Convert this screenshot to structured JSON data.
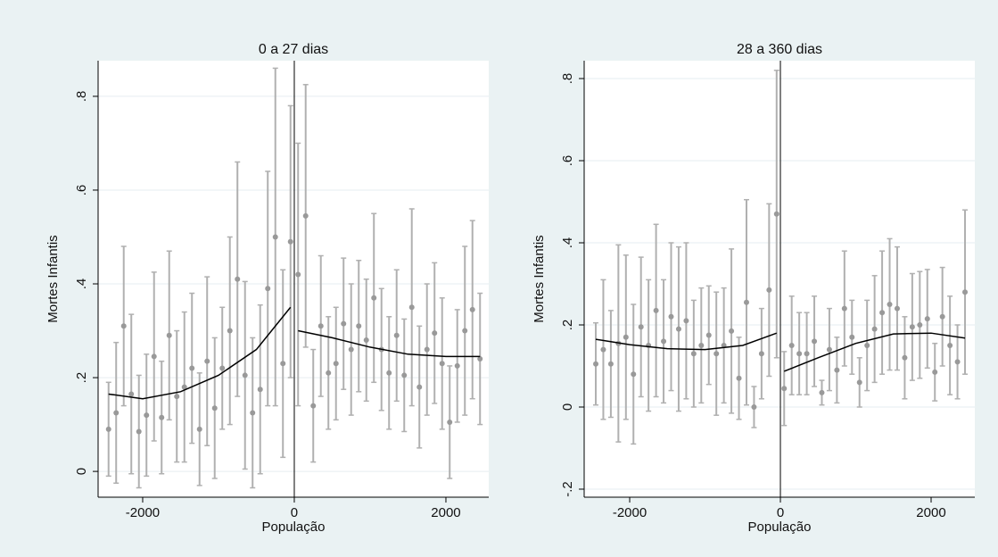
{
  "chart_data": [
    {
      "type": "scatter",
      "title": "0 a 27 dias",
      "xlabel": "População",
      "ylabel": "Mortes Infantis",
      "x": [
        -2450,
        -2350,
        -2250,
        -2150,
        -2050,
        -1950,
        -1850,
        -1750,
        -1650,
        -1550,
        -1450,
        -1350,
        -1250,
        -1150,
        -1050,
        -950,
        -850,
        -750,
        -650,
        -550,
        -450,
        -350,
        -250,
        -150,
        -50,
        50,
        150,
        250,
        350,
        450,
        550,
        650,
        750,
        850,
        950,
        1050,
        1150,
        1250,
        1350,
        1450,
        1550,
        1650,
        1750,
        1850,
        1950,
        2050,
        2150,
        2250,
        2350,
        2450
      ],
      "values": [
        0.09,
        0.125,
        0.31,
        0.165,
        0.085,
        0.12,
        0.245,
        0.115,
        0.29,
        0.16,
        0.18,
        0.22,
        0.09,
        0.235,
        0.135,
        0.22,
        0.3,
        0.41,
        0.205,
        0.125,
        0.175,
        0.39,
        0.5,
        0.23,
        0.49,
        0.42,
        0.545,
        0.14,
        0.31,
        0.21,
        0.23,
        0.315,
        0.26,
        0.31,
        0.28,
        0.37,
        0.26,
        0.21,
        0.29,
        0.205,
        0.35,
        0.18,
        0.26,
        0.295,
        0.23,
        0.105,
        0.225,
        0.3,
        0.345,
        0.24
      ],
      "errors": [
        0.1,
        0.15,
        0.17,
        0.17,
        0.12,
        0.13,
        0.18,
        0.12,
        0.18,
        0.14,
        0.16,
        0.16,
        0.12,
        0.18,
        0.15,
        0.13,
        0.2,
        0.25,
        0.2,
        0.16,
        0.18,
        0.25,
        0.36,
        0.2,
        0.29,
        0.28,
        0.28,
        0.12,
        0.15,
        0.12,
        0.12,
        0.14,
        0.14,
        0.14,
        0.13,
        0.18,
        0.13,
        0.12,
        0.14,
        0.12,
        0.21,
        0.13,
        0.14,
        0.15,
        0.14,
        0.12,
        0.12,
        0.18,
        0.19,
        0.14
      ],
      "fit_x": [
        -2450,
        -2000,
        -1500,
        -1000,
        -500,
        -50,
        null,
        50,
        500,
        1000,
        1500,
        2000,
        2450
      ],
      "fit_values": [
        0.165,
        0.155,
        0.17,
        0.205,
        0.26,
        0.35,
        null,
        0.3,
        0.285,
        0.265,
        0.25,
        0.245,
        0.245
      ],
      "cutoff": 0,
      "color": "#999999",
      "bar_color": "#b0b0b0",
      "fit_color": "#000000",
      "grid": true,
      "xlim": [
        -2588,
        2565
      ],
      "ylim": [
        -0.055,
        0.876
      ],
      "xticks": [
        -2000,
        0,
        2000
      ],
      "yticks": [
        0,
        {
          "value": 0.2,
          "label": ".2"
        },
        {
          "value": 0.4,
          "label": ".4"
        },
        {
          "value": 0.6,
          "label": ".6"
        },
        {
          "value": 0.8,
          "label": ".8"
        }
      ]
    },
    {
      "type": "scatter",
      "title": "28 a 360 dias",
      "xlabel": "População",
      "ylabel": "Mortes Infantis",
      "x": [
        -2450,
        -2350,
        -2250,
        -2150,
        -2050,
        -1950,
        -1850,
        -1750,
        -1650,
        -1550,
        -1450,
        -1350,
        -1250,
        -1150,
        -1050,
        -950,
        -850,
        -750,
        -650,
        -550,
        -450,
        -350,
        -250,
        -150,
        -50,
        50,
        150,
        250,
        350,
        450,
        550,
        650,
        750,
        850,
        950,
        1050,
        1150,
        1250,
        1350,
        1450,
        1550,
        1650,
        1750,
        1850,
        1950,
        2050,
        2150,
        2250,
        2350,
        2450
      ],
      "values": [
        0.105,
        0.14,
        0.105,
        0.155,
        0.17,
        0.08,
        0.195,
        0.15,
        0.235,
        0.16,
        0.22,
        0.19,
        0.21,
        0.13,
        0.15,
        0.175,
        0.13,
        0.15,
        0.185,
        0.07,
        0.255,
        0.0,
        0.13,
        0.285,
        0.47,
        0.045,
        0.15,
        0.13,
        0.13,
        0.16,
        0.035,
        0.14,
        0.09,
        0.24,
        0.17,
        0.06,
        0.15,
        0.19,
        0.23,
        0.25,
        0.24,
        0.12,
        0.195,
        0.2,
        0.215,
        0.085,
        0.22,
        0.15,
        0.11,
        0.28
      ],
      "errors": [
        0.1,
        0.17,
        0.13,
        0.24,
        0.2,
        0.17,
        0.17,
        0.16,
        0.21,
        0.15,
        0.18,
        0.2,
        0.19,
        0.13,
        0.14,
        0.12,
        0.15,
        0.14,
        0.2,
        0.1,
        0.25,
        0.05,
        0.11,
        0.21,
        0.35,
        0.09,
        0.12,
        0.1,
        0.1,
        0.11,
        0.03,
        0.1,
        0.08,
        0.14,
        0.09,
        0.06,
        0.11,
        0.13,
        0.15,
        0.16,
        0.15,
        0.1,
        0.13,
        0.13,
        0.12,
        0.07,
        0.12,
        0.12,
        0.09,
        0.2
      ],
      "fit_x": [
        -2450,
        -2000,
        -1500,
        -1000,
        -500,
        -50,
        null,
        50,
        500,
        1000,
        1500,
        2000,
        2450
      ],
      "fit_values": [
        0.165,
        0.152,
        0.142,
        0.14,
        0.15,
        0.18,
        null,
        0.087,
        0.12,
        0.155,
        0.178,
        0.18,
        0.168
      ],
      "cutoff": 0,
      "color": "#999999",
      "bar_color": "#b0b0b0",
      "fit_color": "#000000",
      "grid": true,
      "xlim": [
        -2604,
        2580
      ],
      "ylim": [
        -0.2196,
        0.8435
      ],
      "xticks": [
        -2000,
        0,
        2000
      ],
      "yticks": [
        {
          "value": -0.2,
          "label": "-.2"
        },
        0,
        {
          "value": 0.2,
          "label": ".2"
        },
        {
          "value": 0.4,
          "label": ".4"
        },
        {
          "value": 0.6,
          "label": ".6"
        },
        {
          "value": 0.8,
          "label": ".8"
        }
      ]
    }
  ]
}
